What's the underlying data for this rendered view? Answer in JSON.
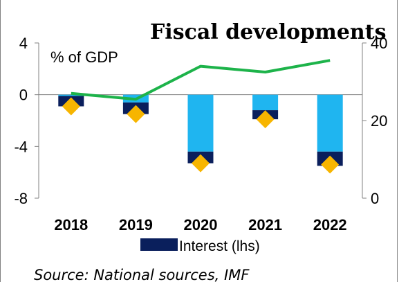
{
  "colors": {
    "bar_light": "#1FB5F0",
    "bar_dark": "#0A1F5C",
    "diamond": "#F7B500",
    "line": "#1DB34A",
    "axis": "#808080"
  },
  "chart_data": {
    "type": "bar",
    "title": "Fiscal developments",
    "ylabel_left": "% of GDP",
    "categories": [
      "2018",
      "2019",
      "2020",
      "2021",
      "2022"
    ],
    "left_axis": {
      "ylim": [
        -8,
        4
      ],
      "ticks": [
        "4",
        "0",
        "-4",
        "-8"
      ]
    },
    "right_axis": {
      "ylim": [
        0,
        40
      ],
      "ticks": [
        "40",
        "20",
        "0"
      ]
    },
    "series": [
      {
        "name": "",
        "kind": "bar-stacked-top",
        "axis": "left",
        "values": [
          -0.1,
          -0.6,
          -4.4,
          -1.2,
          -4.4
        ]
      },
      {
        "name": "Interest (lhs)",
        "kind": "bar-stacked-bottom",
        "axis": "left",
        "values": [
          -0.8,
          -0.9,
          -0.9,
          -0.7,
          -1.1
        ]
      },
      {
        "name": "",
        "kind": "marker-diamond",
        "axis": "left",
        "values": [
          -0.9,
          -1.5,
          -5.3,
          -1.9,
          -5.4
        ]
      },
      {
        "name": "",
        "kind": "line",
        "axis": "right",
        "values": [
          27,
          25.5,
          34,
          32.5,
          35.5
        ]
      }
    ],
    "legend": {
      "position": "bottom",
      "entries": [
        "Interest (lhs)"
      ]
    },
    "grid": false,
    "source": "Source: National sources, IMF"
  }
}
